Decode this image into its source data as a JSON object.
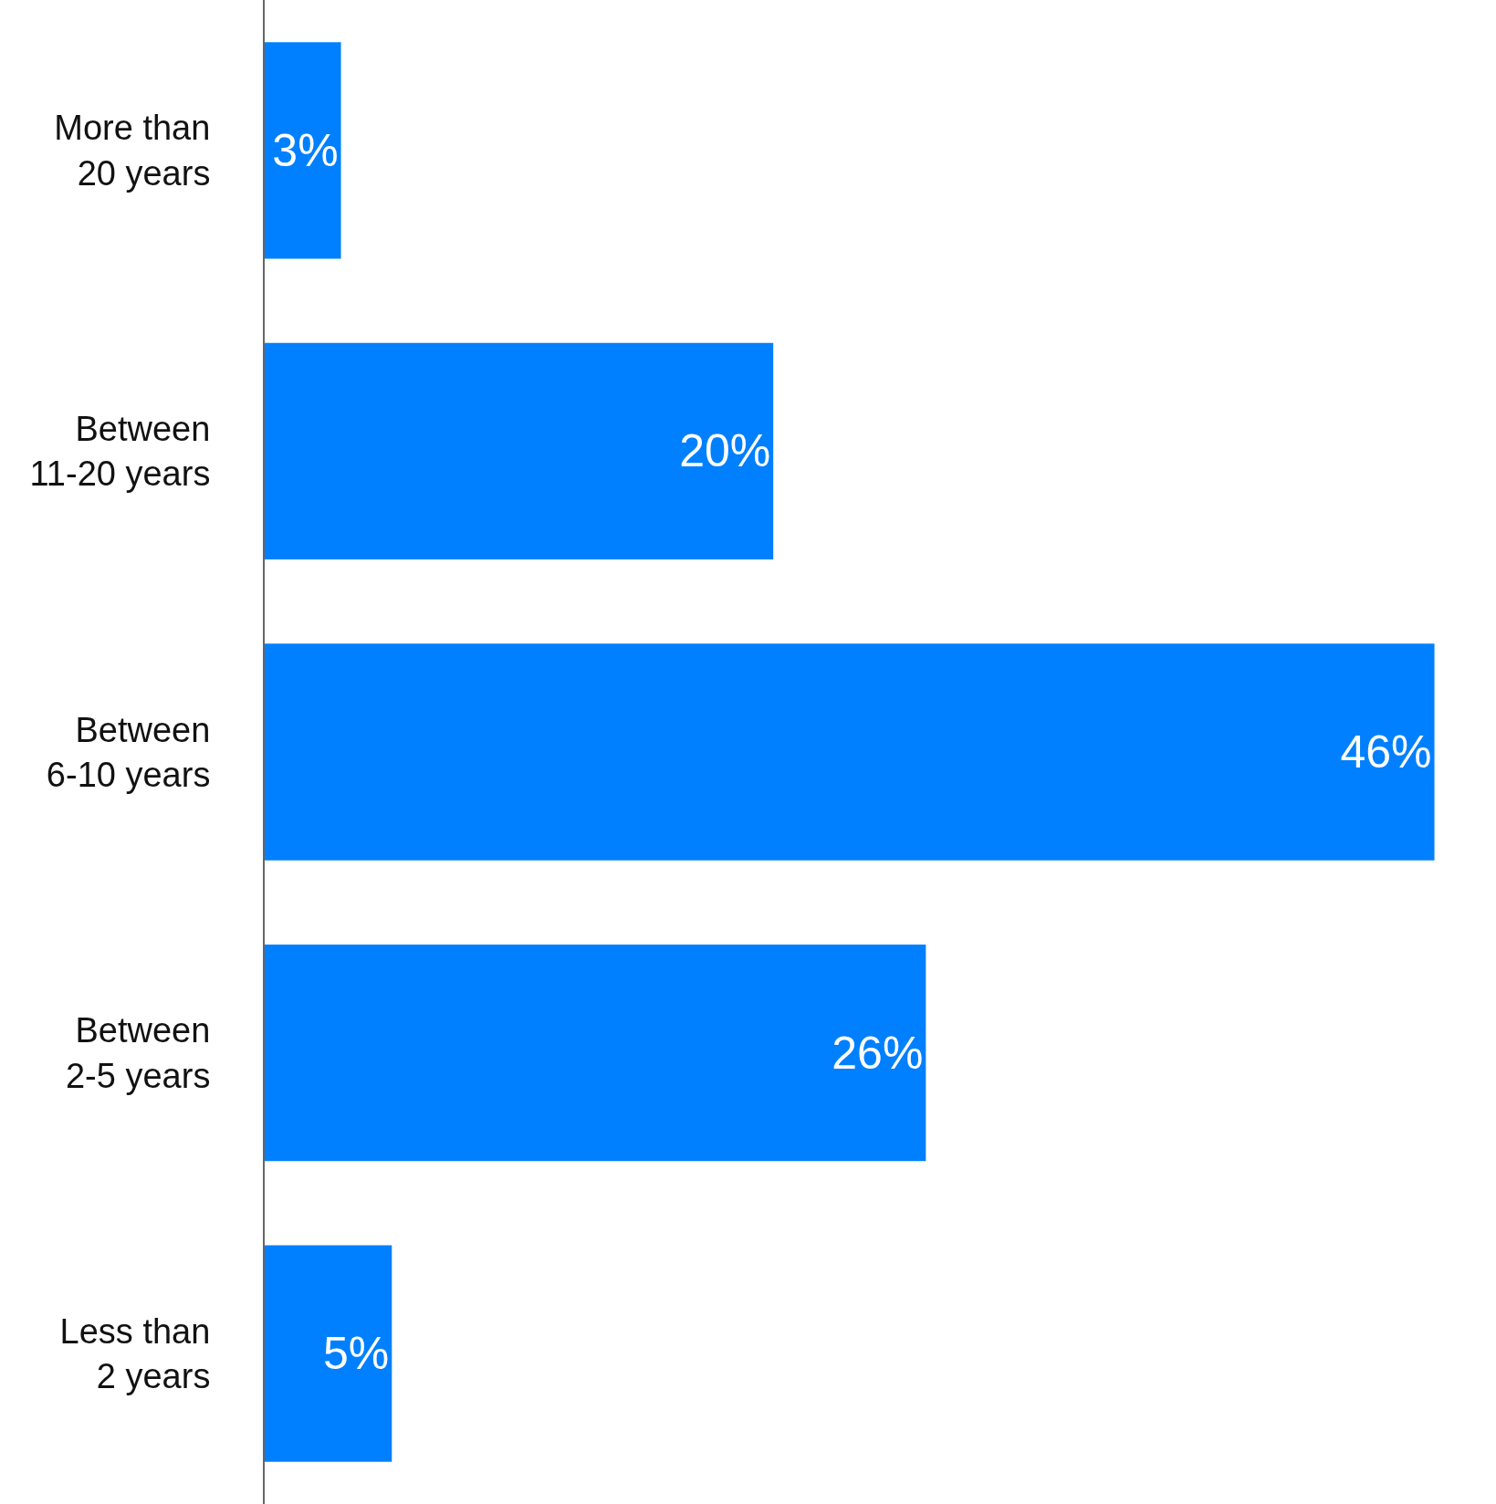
{
  "chart_data": {
    "type": "bar",
    "orientation": "horizontal",
    "categories": [
      "More than\n20 years",
      "Between\n11-20 years",
      "Between\n6-10 years",
      "Between\n2-5 years",
      "Less than\n2 years"
    ],
    "values": [
      3,
      20,
      46,
      26,
      5
    ],
    "value_labels": [
      "3%",
      "20%",
      "46%",
      "26%",
      "5%"
    ],
    "color": "#0080ff"
  }
}
